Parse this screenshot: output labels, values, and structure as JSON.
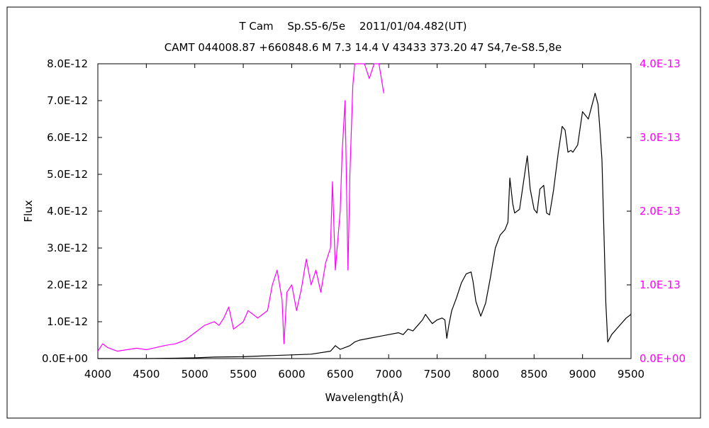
{
  "chart_data": {
    "type": "line",
    "title": "T Cam　 Sp.S5-6/5e　 2011/01/04.482(UT)",
    "subtitle": "CAMT 044008.87 +660848.6 M 7.3 14.4 V 43433 373.20 47 S4,7e-S8.5,8e",
    "xlabel": "Wavelength(Å)",
    "ylabel": "Flux",
    "xlim": [
      4000,
      9500
    ],
    "ylim": [
      0,
      8e-12
    ],
    "y2lim": [
      0,
      4e-13
    ],
    "x_ticks": [
      "4000",
      "4500",
      "5000",
      "5500",
      "6000",
      "6500",
      "7000",
      "7500",
      "8000",
      "8500",
      "9000",
      "9500"
    ],
    "y_ticks": [
      "0.0E+00",
      "1.0E-12",
      "2.0E-12",
      "3.0E-12",
      "4.0E-12",
      "5.0E-12",
      "6.0E-12",
      "7.0E-12",
      "8.0E-12"
    ],
    "y2_ticks": [
      "0.0E+00",
      "1.0E-13",
      "2.0E-13",
      "3.0E-13",
      "4.0E-13"
    ],
    "grid": false,
    "colors": {
      "primary": "#000000",
      "secondary": "#ff00ff"
    },
    "series": [
      {
        "axis": "left",
        "color": "#000000",
        "points": [
          [
            4000,
            0.0
          ],
          [
            4300,
            0.0
          ],
          [
            4500,
            0.0
          ],
          [
            4800,
            1e-14
          ],
          [
            5000,
            2e-14
          ],
          [
            5200,
            4e-14
          ],
          [
            5500,
            5e-14
          ],
          [
            5800,
            8e-14
          ],
          [
            6000,
            1e-13
          ],
          [
            6200,
            1.2e-13
          ],
          [
            6400,
            2e-13
          ],
          [
            6450,
            3.5e-13
          ],
          [
            6500,
            2.5e-13
          ],
          [
            6550,
            3e-13
          ],
          [
            6600,
            3.5e-13
          ],
          [
            6650,
            4.5e-13
          ],
          [
            6700,
            5e-13
          ],
          [
            6800,
            5.5e-13
          ],
          [
            6900,
            6e-13
          ],
          [
            7000,
            6.5e-13
          ],
          [
            7100,
            7e-13
          ],
          [
            7150,
            6.5e-13
          ],
          [
            7200,
            8e-13
          ],
          [
            7250,
            7.5e-13
          ],
          [
            7300,
            9e-13
          ],
          [
            7350,
            1.05e-12
          ],
          [
            7380,
            1.2e-12
          ],
          [
            7420,
            1.05e-12
          ],
          [
            7450,
            9.5e-13
          ],
          [
            7500,
            1.05e-12
          ],
          [
            7550,
            1.1e-12
          ],
          [
            7580,
            1.05e-12
          ],
          [
            7600,
            5.5e-13
          ],
          [
            7620,
            9e-13
          ],
          [
            7650,
            1.3e-12
          ],
          [
            7700,
            1.65e-12
          ],
          [
            7750,
            2.05e-12
          ],
          [
            7800,
            2.3e-12
          ],
          [
            7850,
            2.35e-12
          ],
          [
            7870,
            2.1e-12
          ],
          [
            7900,
            1.55e-12
          ],
          [
            7950,
            1.15e-12
          ],
          [
            8000,
            1.5e-12
          ],
          [
            8050,
            2.2e-12
          ],
          [
            8100,
            3e-12
          ],
          [
            8150,
            3.35e-12
          ],
          [
            8200,
            3.5e-12
          ],
          [
            8230,
            3.7e-12
          ],
          [
            8250,
            4.9e-12
          ],
          [
            8280,
            4.2e-12
          ],
          [
            8300,
            3.95e-12
          ],
          [
            8350,
            4.05e-12
          ],
          [
            8400,
            4.95e-12
          ],
          [
            8430,
            5.5e-12
          ],
          [
            8460,
            4.6e-12
          ],
          [
            8500,
            4.05e-12
          ],
          [
            8530,
            3.95e-12
          ],
          [
            8560,
            4.6e-12
          ],
          [
            8600,
            4.7e-12
          ],
          [
            8630,
            3.95e-12
          ],
          [
            8660,
            3.9e-12
          ],
          [
            8700,
            4.55e-12
          ],
          [
            8750,
            5.6e-12
          ],
          [
            8790,
            6.3e-12
          ],
          [
            8820,
            6.2e-12
          ],
          [
            8850,
            5.6e-12
          ],
          [
            8880,
            5.65e-12
          ],
          [
            8900,
            5.6e-12
          ],
          [
            8950,
            5.8e-12
          ],
          [
            9000,
            6.7e-12
          ],
          [
            9030,
            6.6e-12
          ],
          [
            9060,
            6.5e-12
          ],
          [
            9100,
            6.9e-12
          ],
          [
            9130,
            7.2e-12
          ],
          [
            9160,
            6.9e-12
          ],
          [
            9180,
            6.2e-12
          ],
          [
            9200,
            5.4e-12
          ],
          [
            9220,
            3.5e-12
          ],
          [
            9240,
            1.5e-12
          ],
          [
            9260,
            4.5e-13
          ],
          [
            9300,
            6.5e-13
          ],
          [
            9350,
            8e-13
          ],
          [
            9400,
            9.5e-13
          ],
          [
            9450,
            1.1e-12
          ],
          [
            9500,
            1.2e-12
          ]
        ]
      },
      {
        "axis": "right",
        "color": "#ff00ff",
        "points": [
          [
            4000,
            1e-14
          ],
          [
            4050,
            2e-14
          ],
          [
            4100,
            1.5e-14
          ],
          [
            4200,
            1e-14
          ],
          [
            4300,
            1.2e-14
          ],
          [
            4400,
            1.4e-14
          ],
          [
            4500,
            1.2e-14
          ],
          [
            4600,
            1.5e-14
          ],
          [
            4700,
            1.8e-14
          ],
          [
            4800,
            2e-14
          ],
          [
            4900,
            2.5e-14
          ],
          [
            5000,
            3.5e-14
          ],
          [
            5100,
            4.5e-14
          ],
          [
            5200,
            5e-14
          ],
          [
            5250,
            4.5e-14
          ],
          [
            5300,
            5.5e-14
          ],
          [
            5350,
            7e-14
          ],
          [
            5400,
            4e-14
          ],
          [
            5450,
            4.5e-14
          ],
          [
            5500,
            5e-14
          ],
          [
            5550,
            6.5e-14
          ],
          [
            5600,
            6e-14
          ],
          [
            5650,
            5.5e-14
          ],
          [
            5700,
            6e-14
          ],
          [
            5750,
            6.5e-14
          ],
          [
            5800,
            1e-13
          ],
          [
            5850,
            1.2e-13
          ],
          [
            5900,
            8e-14
          ],
          [
            5920,
            2e-14
          ],
          [
            5950,
            9e-14
          ],
          [
            6000,
            1e-13
          ],
          [
            6050,
            6.5e-14
          ],
          [
            6100,
            9.5e-14
          ],
          [
            6150,
            1.35e-13
          ],
          [
            6200,
            1e-13
          ],
          [
            6250,
            1.2e-13
          ],
          [
            6300,
            9e-14
          ],
          [
            6350,
            1.3e-13
          ],
          [
            6400,
            1.5e-13
          ],
          [
            6420,
            2.4e-13
          ],
          [
            6450,
            1.2e-13
          ],
          [
            6500,
            2e-13
          ],
          [
            6520,
            2.8e-13
          ],
          [
            6550,
            3.5e-13
          ],
          [
            6580,
            1.2e-13
          ],
          [
            6600,
            2.5e-13
          ],
          [
            6630,
            3.7e-13
          ],
          [
            6650,
            4e-13
          ],
          [
            6700,
            4e-13
          ],
          [
            6750,
            4e-13
          ],
          [
            6800,
            3.8e-13
          ],
          [
            6850,
            4e-13
          ],
          [
            6900,
            4e-13
          ],
          [
            6950,
            3.6e-13
          ]
        ]
      }
    ]
  }
}
